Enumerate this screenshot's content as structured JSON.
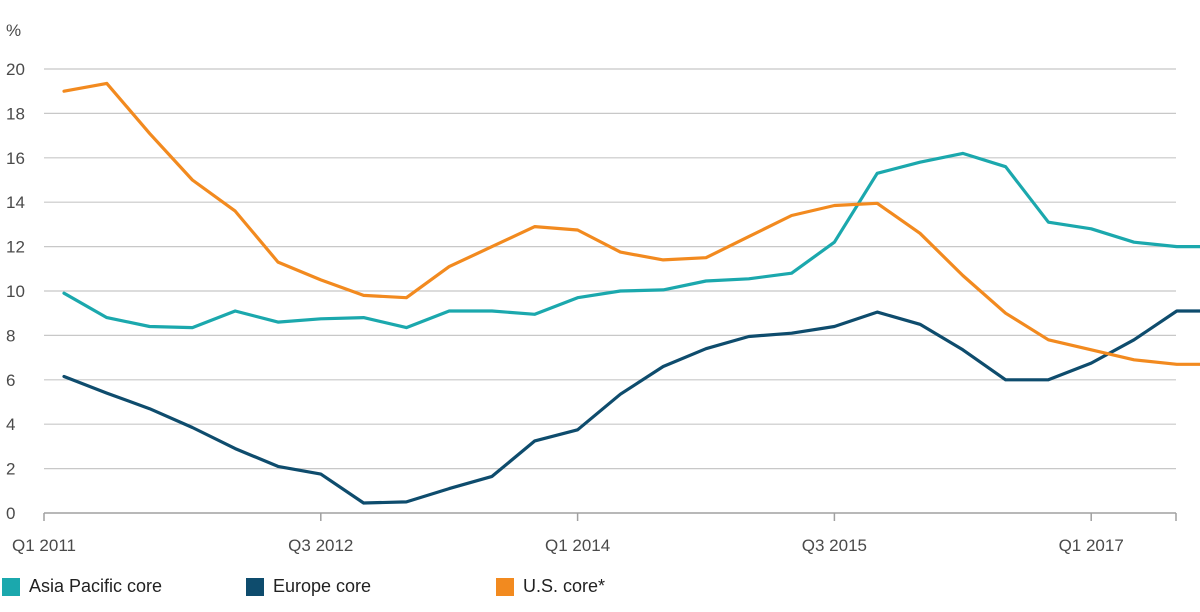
{
  "chart_data": {
    "type": "line",
    "y_unit_label": "%",
    "ylim": [
      0,
      20
    ],
    "y_ticks": [
      0,
      2,
      4,
      6,
      8,
      10,
      12,
      14,
      16,
      18,
      20
    ],
    "x_tick_labels": [
      {
        "label": "Q1 2011",
        "index": 0
      },
      {
        "label": "Q3 2012",
        "index": 6
      },
      {
        "label": "Q1 2014",
        "index": 12
      },
      {
        "label": "Q3 2015",
        "index": 18
      },
      {
        "label": "Q1 2017",
        "index": 24
      }
    ],
    "x": [
      "Q1 2011",
      "Q2 2011",
      "Q3 2011",
      "Q4 2011",
      "Q1 2012",
      "Q2 2012",
      "Q3 2012",
      "Q4 2012",
      "Q1 2013",
      "Q2 2013",
      "Q3 2013",
      "Q4 2013",
      "Q1 2014",
      "Q2 2014",
      "Q3 2014",
      "Q4 2014",
      "Q1 2015",
      "Q2 2015",
      "Q3 2015",
      "Q4 2015",
      "Q1 2016",
      "Q2 2016",
      "Q3 2016",
      "Q4 2016",
      "Q1 2017",
      "Q2 2017",
      "Q3 2017",
      "Q4 2017"
    ],
    "grid": true,
    "legend_position": "bottom",
    "series": [
      {
        "name": "Asia Pacific core",
        "color": "#1ba8ad",
        "values": [
          9.9,
          8.8,
          8.4,
          8.35,
          9.1,
          8.6,
          8.75,
          8.8,
          8.35,
          9.1,
          9.1,
          8.95,
          9.7,
          10.0,
          10.05,
          10.45,
          10.55,
          10.8,
          12.2,
          15.3,
          15.8,
          16.2,
          15.6,
          13.1,
          12.8,
          12.2,
          12.0,
          12.0
        ]
      },
      {
        "name": "Europe core",
        "color": "#0e4c6d",
        "values": [
          6.15,
          5.4,
          4.7,
          3.85,
          2.9,
          2.1,
          1.75,
          0.45,
          0.5,
          1.1,
          1.65,
          3.25,
          3.75,
          5.35,
          6.6,
          7.4,
          7.95,
          8.1,
          8.4,
          9.05,
          8.5,
          7.35,
          6.0,
          6.0,
          6.75,
          7.8,
          9.1,
          9.1
        ]
      },
      {
        "name": "U.S. core*",
        "color": "#f28a1f",
        "values": [
          19.0,
          19.35,
          17.1,
          15.0,
          13.6,
          11.3,
          10.5,
          9.8,
          9.7,
          11.1,
          12.0,
          12.9,
          12.75,
          11.75,
          11.4,
          11.5,
          12.45,
          13.4,
          13.85,
          13.95,
          12.6,
          10.7,
          9.0,
          7.8,
          7.35,
          6.9,
          6.7,
          6.7
        ]
      }
    ]
  }
}
